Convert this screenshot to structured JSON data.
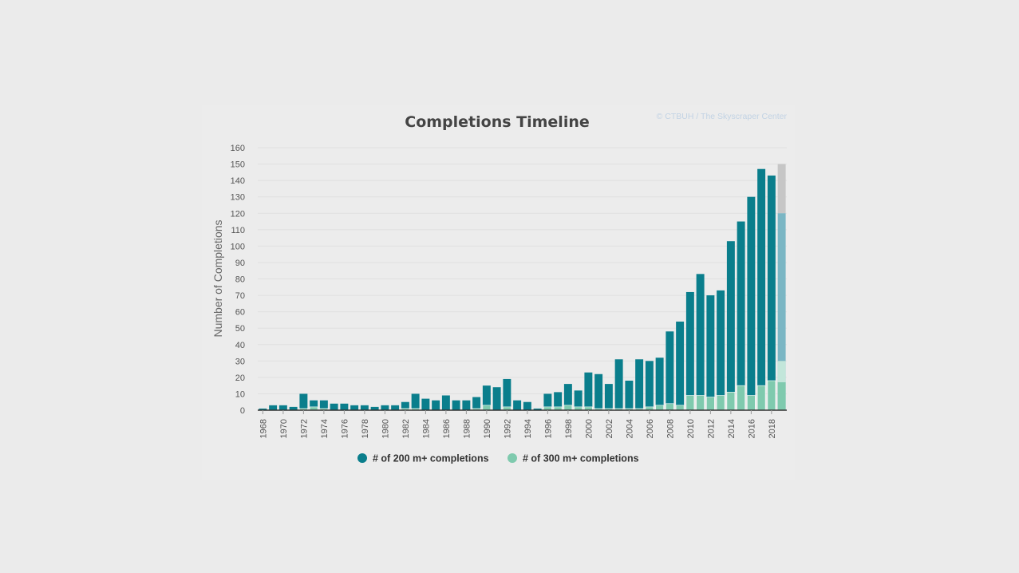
{
  "chart_data": {
    "type": "bar",
    "stacked": true,
    "title": "Completions Timeline",
    "credit": "© CTBUH / The Skyscraper Center",
    "ylabel": "Number of Completions",
    "xlabel": "",
    "ylim": [
      0,
      160
    ],
    "yticks": [
      0,
      10,
      20,
      30,
      40,
      50,
      60,
      70,
      80,
      90,
      100,
      110,
      120,
      130,
      140,
      150,
      160
    ],
    "grid": true,
    "legend_position": "bottom-center",
    "categories": [
      "1968",
      "1969",
      "1970",
      "1971",
      "1972",
      "1973",
      "1974",
      "1975",
      "1976",
      "1977",
      "1978",
      "1979",
      "1980",
      "1981",
      "1982",
      "1983",
      "1984",
      "1985",
      "1986",
      "1987",
      "1988",
      "1989",
      "1990",
      "1991",
      "1992",
      "1993",
      "1994",
      "1995",
      "1996",
      "1997",
      "1998",
      "1999",
      "2000",
      "2001",
      "2002",
      "2003",
      "2004",
      "2005",
      "2006",
      "2007",
      "2008",
      "2009",
      "2010",
      "2011",
      "2012",
      "2013",
      "2014",
      "2015",
      "2016",
      "2017",
      "2018",
      "2019"
    ],
    "x_tick_labels": [
      "1968",
      "1970",
      "1972",
      "1974",
      "1976",
      "1978",
      "1980",
      "1982",
      "1984",
      "1986",
      "1988",
      "1990",
      "1992",
      "1994",
      "1996",
      "1998",
      "2000",
      "2002",
      "2004",
      "2006",
      "2008",
      "2010",
      "2012",
      "2014",
      "2016",
      "2018"
    ],
    "series": [
      {
        "name": "# of 200 m+ completions",
        "color": "#0a7e8c",
        "values": [
          1,
          3,
          3,
          2,
          10,
          6,
          6,
          4,
          4,
          3,
          3,
          2,
          3,
          3,
          5,
          10,
          7,
          6,
          9,
          6,
          6,
          8,
          15,
          14,
          19,
          6,
          5,
          1,
          10,
          11,
          16,
          12,
          23,
          22,
          16,
          31,
          18,
          31,
          30,
          32,
          48,
          54,
          72,
          83,
          70,
          73,
          103,
          115,
          130,
          147,
          143,
          120
        ]
      },
      {
        "name": "# of 300 m+ completions",
        "color": "#7fcaae",
        "values": [
          0,
          0,
          0,
          0,
          1,
          2,
          1,
          0,
          0,
          0,
          0,
          0,
          0,
          0,
          1,
          1,
          0,
          0,
          0,
          0,
          0,
          1,
          3,
          0,
          2,
          0,
          0,
          0,
          2,
          2,
          3,
          2,
          2,
          1,
          1,
          1,
          1,
          1,
          2,
          3,
          4,
          3,
          9,
          9,
          8,
          9,
          11,
          15,
          9,
          15,
          18,
          17
        ]
      }
    ],
    "projected": {
      "category": "2019",
      "total_with_projection": 150,
      "projected_300_to": 30,
      "colors": {
        "projected_200": "#c6c6c6",
        "projected_300": "#c2e6da",
        "light_200": "#7ab6c4"
      }
    }
  }
}
